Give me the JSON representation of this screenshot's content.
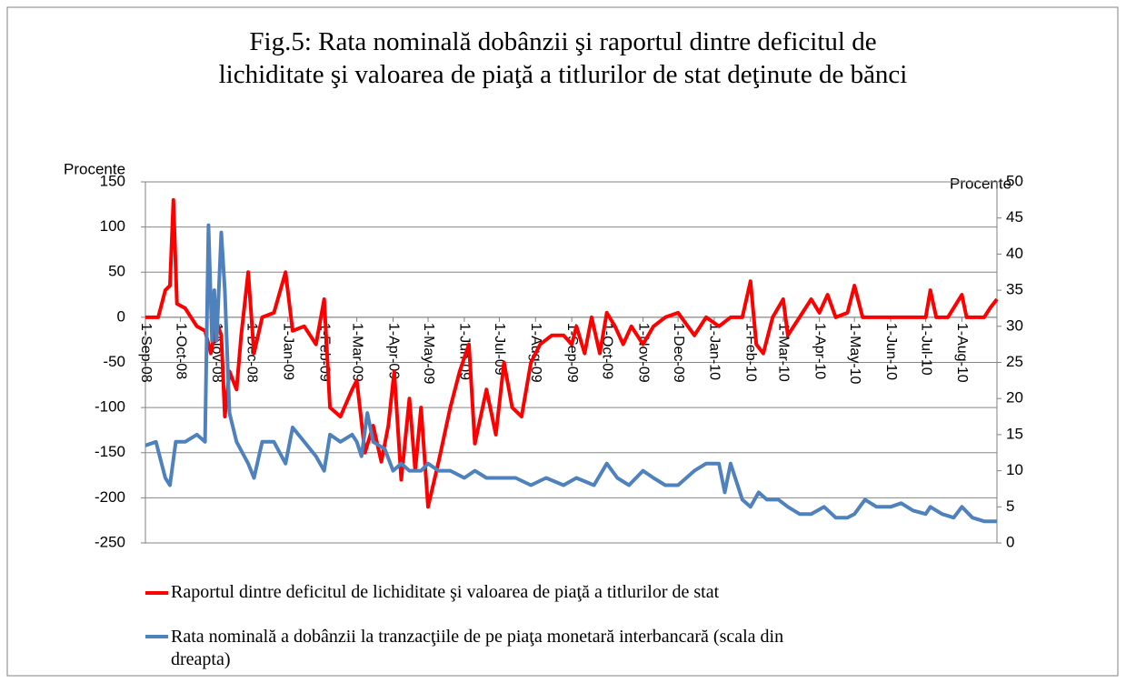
{
  "chart_data": {
    "type": "line",
    "title": "Fig.5: Rata nominală dobânzii şi raportul dintre deficitul de\nlichiditate şi valoarea de piaţă a titlurilor de stat deţinute de bănci",
    "ylabel": "Procente",
    "y2label": "Procente",
    "xlim": [
      "2008-09-01",
      "2010-08-31"
    ],
    "xticks": [
      {
        "value": "2008-09-01",
        "label": "1-Sep-08"
      },
      {
        "value": "2008-10-01",
        "label": "1-Oct-08"
      },
      {
        "value": "2008-11-01",
        "label": "1-Nov-08"
      },
      {
        "value": "2008-12-01",
        "label": "1-Dec-08"
      },
      {
        "value": "2009-01-01",
        "label": "1-Jan-09"
      },
      {
        "value": "2009-02-01",
        "label": "1-Feb-09"
      },
      {
        "value": "2009-03-01",
        "label": "1-Mar-09"
      },
      {
        "value": "2009-04-01",
        "label": "1-Apr-09"
      },
      {
        "value": "2009-05-01",
        "label": "1-May-09"
      },
      {
        "value": "2009-06-01",
        "label": "1-Jun-09"
      },
      {
        "value": "2009-07-01",
        "label": "1-Jul-09"
      },
      {
        "value": "2009-08-01",
        "label": "1-Aug-09"
      },
      {
        "value": "2009-09-01",
        "label": "1-Sep-09"
      },
      {
        "value": "2009-10-01",
        "label": "1-Oct-09"
      },
      {
        "value": "2009-11-01",
        "label": "1-Nov-09"
      },
      {
        "value": "2009-12-01",
        "label": "1-Dec-09"
      },
      {
        "value": "2010-01-01",
        "label": "1-Jan-10"
      },
      {
        "value": "2010-02-01",
        "label": "1-Feb-10"
      },
      {
        "value": "2010-03-01",
        "label": "1-Mar-10"
      },
      {
        "value": "2010-04-01",
        "label": "1-Apr-10"
      },
      {
        "value": "2010-05-01",
        "label": "1-May-10"
      },
      {
        "value": "2010-06-01",
        "label": "1-Jun-10"
      },
      {
        "value": "2010-07-01",
        "label": "1-Jul-10"
      },
      {
        "value": "2010-08-01",
        "label": "1-Aug-10"
      }
    ],
    "ylim": [
      -250,
      150
    ],
    "yticks": [
      -250,
      -200,
      -150,
      -100,
      -50,
      0,
      50,
      100,
      150
    ],
    "y2lim": [
      0,
      50
    ],
    "y2ticks": [
      0,
      5,
      10,
      15,
      20,
      25,
      30,
      35,
      40,
      45,
      50
    ],
    "grid": true,
    "series": [
      {
        "name": "Raportul dintre deficitul de lichiditate şi valoarea de piaţă a titlurilor de stat",
        "color": "#ff0000",
        "x": [
          "2008-09-01",
          "2008-09-12",
          "2008-09-18",
          "2008-09-22",
          "2008-09-25",
          "2008-09-28",
          "2008-10-05",
          "2008-10-15",
          "2008-10-22",
          "2008-10-27",
          "2008-11-01",
          "2008-11-05",
          "2008-11-08",
          "2008-11-12",
          "2008-11-18",
          "2008-11-22",
          "2008-11-28",
          "2008-12-03",
          "2008-12-10",
          "2008-12-20",
          "2008-12-30",
          "2009-01-05",
          "2009-01-15",
          "2009-01-25",
          "2009-02-01",
          "2009-02-06",
          "2009-02-15",
          "2009-02-25",
          "2009-03-01",
          "2009-03-08",
          "2009-03-15",
          "2009-03-22",
          "2009-03-28",
          "2009-04-02",
          "2009-04-08",
          "2009-04-15",
          "2009-04-20",
          "2009-04-25",
          "2009-05-01",
          "2009-05-10",
          "2009-05-20",
          "2009-05-28",
          "2009-06-05",
          "2009-06-10",
          "2009-06-20",
          "2009-06-28",
          "2009-07-05",
          "2009-07-12",
          "2009-07-20",
          "2009-07-28",
          "2009-08-05",
          "2009-08-15",
          "2009-08-25",
          "2009-09-01",
          "2009-09-05",
          "2009-09-12",
          "2009-09-18",
          "2009-09-25",
          "2009-10-01",
          "2009-10-08",
          "2009-10-15",
          "2009-10-22",
          "2009-11-01",
          "2009-11-10",
          "2009-11-20",
          "2009-12-01",
          "2009-12-15",
          "2009-12-25",
          "2010-01-05",
          "2010-01-15",
          "2010-01-25",
          "2010-02-01",
          "2010-02-06",
          "2010-02-12",
          "2010-02-20",
          "2010-03-01",
          "2010-03-05",
          "2010-03-15",
          "2010-03-25",
          "2010-04-01",
          "2010-04-08",
          "2010-04-15",
          "2010-04-25",
          "2010-05-01",
          "2010-05-08",
          "2010-05-20",
          "2010-06-01",
          "2010-06-15",
          "2010-07-01",
          "2010-07-05",
          "2010-07-10",
          "2010-07-20",
          "2010-08-01",
          "2010-08-05",
          "2010-08-20",
          "2010-08-25",
          "2010-08-31"
        ],
        "values": [
          0,
          0,
          30,
          35,
          130,
          15,
          10,
          -10,
          -15,
          -40,
          -5,
          -20,
          -110,
          -60,
          -80,
          -20,
          50,
          -40,
          0,
          5,
          50,
          -15,
          -10,
          -30,
          20,
          -100,
          -110,
          -80,
          -70,
          -150,
          -120,
          -160,
          -120,
          -60,
          -180,
          -90,
          -170,
          -100,
          -210,
          -160,
          -100,
          -60,
          -30,
          -140,
          -80,
          -130,
          -50,
          -100,
          -110,
          -50,
          -30,
          -20,
          -20,
          -30,
          -10,
          -40,
          0,
          -40,
          5,
          -10,
          -30,
          -10,
          -30,
          -10,
          0,
          5,
          -20,
          0,
          -10,
          0,
          0,
          40,
          -30,
          -40,
          0,
          20,
          -20,
          0,
          20,
          5,
          25,
          0,
          5,
          35,
          0,
          0,
          0,
          0,
          0,
          30,
          0,
          0,
          25,
          0,
          0,
          10,
          20
        ]
      },
      {
        "name": "Rata nominală a dobânzii la tranzacţiile de pe piaţa monetară interbancară (scala din\ndreapta)",
        "color": "#4f81bd",
        "axis": "y2",
        "x": [
          "2008-09-01",
          "2008-09-10",
          "2008-09-18",
          "2008-09-22",
          "2008-09-27",
          "2008-10-05",
          "2008-10-15",
          "2008-10-22",
          "2008-10-25",
          "2008-10-28",
          "2008-10-30",
          "2008-11-01",
          "2008-11-05",
          "2008-11-08",
          "2008-11-12",
          "2008-11-18",
          "2008-11-28",
          "2008-12-03",
          "2008-12-10",
          "2008-12-20",
          "2008-12-30",
          "2009-01-05",
          "2009-01-15",
          "2009-01-25",
          "2009-02-01",
          "2009-02-06",
          "2009-02-15",
          "2009-02-25",
          "2009-03-01",
          "2009-03-05",
          "2009-03-10",
          "2009-03-15",
          "2009-03-25",
          "2009-04-01",
          "2009-04-08",
          "2009-04-15",
          "2009-04-25",
          "2009-05-01",
          "2009-05-10",
          "2009-05-20",
          "2009-06-01",
          "2009-06-10",
          "2009-06-20",
          "2009-07-01",
          "2009-07-15",
          "2009-07-28",
          "2009-08-10",
          "2009-08-25",
          "2009-09-05",
          "2009-09-20",
          "2009-10-01",
          "2009-10-10",
          "2009-10-20",
          "2009-11-01",
          "2009-11-10",
          "2009-11-20",
          "2009-12-01",
          "2009-12-15",
          "2009-12-25",
          "2010-01-05",
          "2010-01-10",
          "2010-01-15",
          "2010-01-25",
          "2010-02-01",
          "2010-02-08",
          "2010-02-15",
          "2010-02-25",
          "2010-03-05",
          "2010-03-15",
          "2010-03-25",
          "2010-04-05",
          "2010-04-15",
          "2010-04-25",
          "2010-05-01",
          "2010-05-10",
          "2010-05-20",
          "2010-06-01",
          "2010-06-10",
          "2010-06-20",
          "2010-07-01",
          "2010-07-05",
          "2010-07-15",
          "2010-07-25",
          "2010-08-01",
          "2010-08-10",
          "2010-08-20",
          "2010-08-31"
        ],
        "values": [
          13.5,
          14,
          9,
          8,
          14,
          14,
          15,
          14,
          44,
          28,
          35,
          28,
          43,
          35,
          18,
          14,
          11,
          9,
          14,
          14,
          11,
          16,
          14,
          12,
          10,
          15,
          14,
          15,
          14,
          12,
          18,
          14,
          13,
          10,
          11,
          10,
          10,
          11,
          10,
          10,
          9,
          10,
          9,
          9,
          9,
          8,
          9,
          8,
          9,
          8,
          11,
          9,
          8,
          10,
          9,
          8,
          8,
          10,
          11,
          11,
          7,
          11,
          6,
          5,
          7,
          6,
          6,
          5,
          4,
          4,
          5,
          3.5,
          3.5,
          4,
          6,
          5,
          5,
          5.5,
          4.5,
          4,
          5,
          4,
          3.5,
          5,
          3.5,
          3,
          3
        ]
      }
    ]
  }
}
